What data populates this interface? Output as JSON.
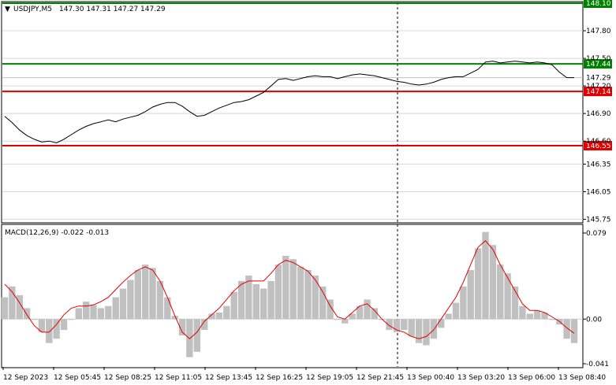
{
  "header": {
    "symbol": "USDJPY,M5",
    "quote": "147.30 147.31 147.27 147.29"
  },
  "colors": {
    "price_line": "#000000",
    "resistance": "#008000",
    "support": "#e00000",
    "macd_hist": "#c0c0c0",
    "macd_signal": "#e00000",
    "grid": "#d8d8d8"
  },
  "chart_data": [
    {
      "type": "line",
      "title": "",
      "series": [
        {
          "values": [
            146.87,
            146.8,
            146.72,
            146.66,
            146.62,
            146.59,
            146.6,
            146.58,
            146.62,
            146.67,
            146.72,
            146.76,
            146.79,
            146.81,
            146.83,
            146.81,
            146.84,
            146.86,
            146.88,
            146.92,
            146.97,
            147.0,
            147.02,
            147.02,
            146.98,
            146.92,
            146.87,
            146.88,
            146.92,
            146.96,
            146.99,
            147.02,
            147.03,
            147.05,
            147.09,
            147.13,
            147.2,
            147.27,
            147.28,
            147.26,
            147.28,
            147.3,
            147.31,
            147.3,
            147.3,
            147.28,
            147.3,
            147.32,
            147.33,
            147.32,
            147.31,
            147.29,
            147.27,
            147.25,
            147.24,
            147.22,
            147.21,
            147.22,
            147.24,
            147.27,
            147.29,
            147.3,
            147.3,
            147.34,
            147.38,
            147.46,
            147.47,
            147.45,
            147.46,
            147.47,
            147.46,
            147.45,
            147.46,
            147.45,
            147.43,
            147.35,
            147.29,
            147.29
          ]
        }
      ],
      "y_ticks": [
        "147.80",
        "147.50",
        "147.20",
        "146.90",
        "146.60",
        "146.35",
        "146.05",
        "145.75"
      ],
      "ylim": [
        145.72,
        148.1
      ],
      "levels": [
        {
          "value": 148.1,
          "label": "148.10",
          "color": "#008000"
        },
        {
          "value": 147.44,
          "label": "147.44",
          "color": "#008000"
        },
        {
          "value": 147.14,
          "label": "147.14",
          "color": "#e00000"
        },
        {
          "value": 146.55,
          "label": "146.55",
          "color": "#e00000"
        }
      ],
      "current_price": {
        "value": 147.29,
        "label": "147.29"
      }
    },
    {
      "type": "bar",
      "title": "MACD(12,26,9) -0.022 -0.013",
      "series": [
        {
          "values": [
            0.02,
            0.03,
            0.022,
            0.01,
            0.0,
            -0.012,
            -0.022,
            -0.018,
            -0.01,
            0.0,
            0.01,
            0.016,
            0.013,
            0.01,
            0.012,
            0.02,
            0.028,
            0.036,
            0.045,
            0.05,
            0.047,
            0.035,
            0.02,
            0.003,
            -0.015,
            -0.035,
            -0.03,
            -0.01,
            0.005,
            0.006,
            0.012,
            0.025,
            0.035,
            0.04,
            0.032,
            0.028,
            0.035,
            0.05,
            0.058,
            0.055,
            0.048,
            0.045,
            0.04,
            0.03,
            0.018,
            0.0,
            -0.004,
            0.005,
            0.012,
            0.018,
            0.01,
            0.0,
            -0.01,
            -0.012,
            -0.01,
            -0.016,
            -0.022,
            -0.024,
            -0.018,
            -0.008,
            0.005,
            0.015,
            0.03,
            0.045,
            0.065,
            0.08,
            0.068,
            0.05,
            0.042,
            0.03,
            0.012,
            0.005,
            0.008,
            0.006,
            0.0,
            -0.005,
            -0.018,
            -0.022
          ]
        },
        {
          "values": [
            0.032,
            0.025,
            0.015,
            0.004,
            -0.006,
            -0.012,
            -0.012,
            -0.005,
            0.004,
            0.01,
            0.012,
            0.012,
            0.013,
            0.016,
            0.02,
            0.027,
            0.034,
            0.04,
            0.045,
            0.048,
            0.045,
            0.035,
            0.02,
            0.003,
            -0.012,
            -0.018,
            -0.012,
            -0.002,
            0.004,
            0.01,
            0.018,
            0.026,
            0.032,
            0.035,
            0.035,
            0.035,
            0.042,
            0.05,
            0.054,
            0.052,
            0.048,
            0.044,
            0.036,
            0.025,
            0.012,
            0.002,
            0.0,
            0.006,
            0.012,
            0.014,
            0.008,
            0.0,
            -0.006,
            -0.01,
            -0.012,
            -0.016,
            -0.018,
            -0.016,
            -0.01,
            0.0,
            0.01,
            0.02,
            0.034,
            0.05,
            0.066,
            0.072,
            0.064,
            0.05,
            0.038,
            0.026,
            0.014,
            0.008,
            0.008,
            0.006,
            0.002,
            -0.002,
            -0.008,
            -0.013
          ]
        }
      ],
      "y_ticks": [
        "0.079",
        "0.00",
        "-0.041"
      ],
      "ylim": [
        -0.041,
        0.079
      ]
    }
  ],
  "x_labels": [
    "12 Sep 2023",
    "12 Sep 05:45",
    "12 Sep 08:25",
    "12 Sep 11:05",
    "12 Sep 13:45",
    "12 Sep 16:25",
    "12 Sep 19:05",
    "12 Sep 21:45",
    "13 Sep 00:40",
    "13 Sep 03:20",
    "13 Sep 06:00",
    "13 Sep 08:40"
  ]
}
